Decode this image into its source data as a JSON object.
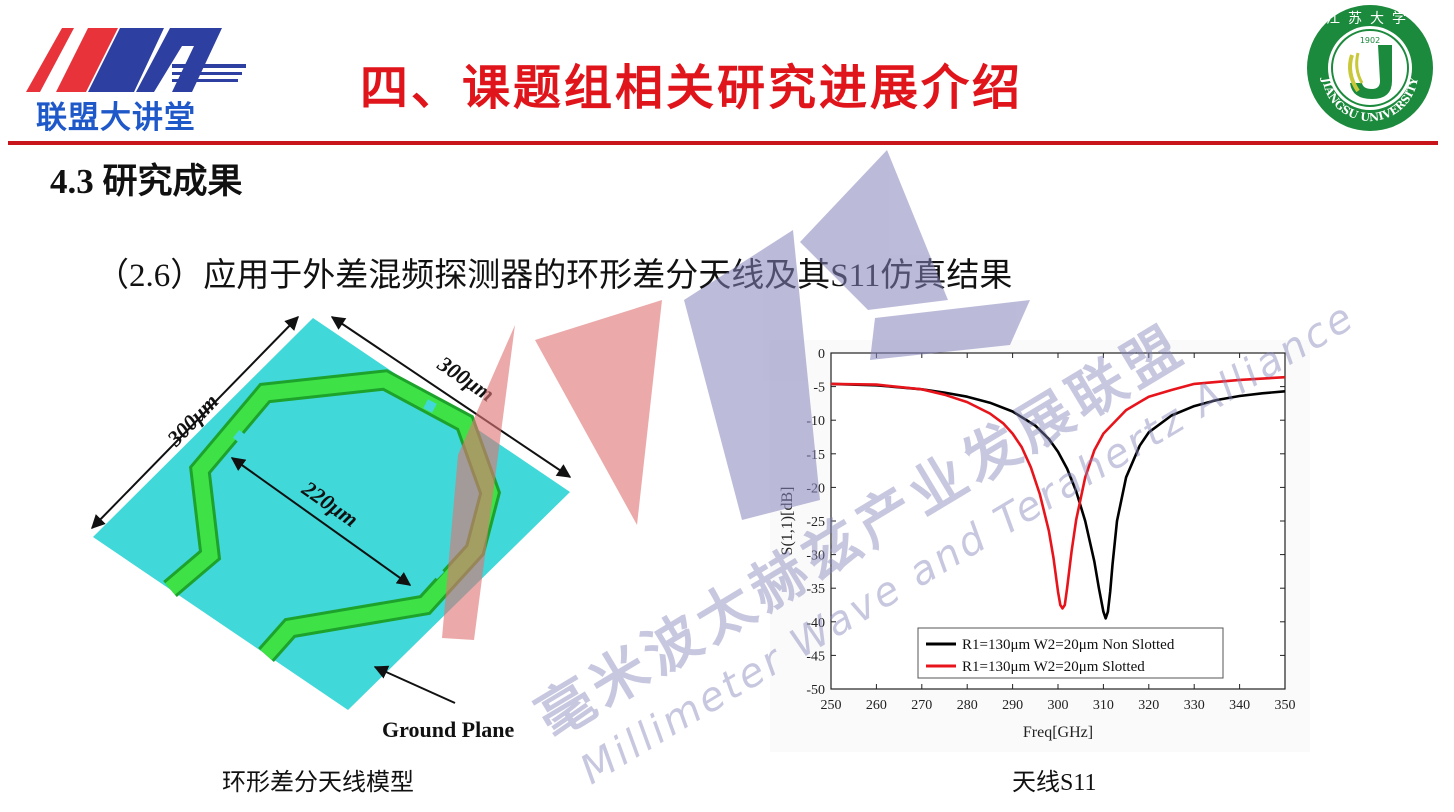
{
  "header": {
    "logo_left_text": "联盟大讲堂",
    "title": "四、课题组相关研究进展介绍",
    "logo_right_year": "1902",
    "logo_right_name_en": "JIANGSU UNIVERSITY",
    "logo_right_name_cn": "江苏大学"
  },
  "section": {
    "heading": "4.3  研究成果",
    "subtitle": "（2.6）应用于外差混频探测器的环形差分天线及其S11仿真结果"
  },
  "antenna_figure": {
    "dim_outer_left": "300μm",
    "dim_outer_right": "300μm",
    "dim_inner": "220μm",
    "ground_label": "Ground Plane",
    "caption": "环形差分天线模型",
    "colors": {
      "substrate": "#40d8d8",
      "ring": "#33d43a"
    }
  },
  "chart_caption": "天线S11",
  "watermark": {
    "cn_text": "毫米波太赫兹产业发展联盟",
    "en_text": "Millimeter Wave and Terahertz Alliance",
    "colors": {
      "red": "#e07575",
      "blue": "#8585bb"
    }
  },
  "chart_data": {
    "type": "line",
    "xlabel": "Freq[GHz]",
    "ylabel": "S(1,1)[dB]",
    "xlim": [
      250,
      350
    ],
    "ylim": [
      -50,
      0
    ],
    "xticks": [
      250,
      260,
      270,
      280,
      290,
      300,
      310,
      320,
      330,
      340,
      350
    ],
    "yticks": [
      0,
      -5,
      -10,
      -15,
      -20,
      -25,
      -30,
      -35,
      -40,
      -45,
      -50
    ],
    "legend_position": "bottom-right",
    "series": [
      {
        "name": "R1=130μm W2=20μm Non Slotted",
        "color": "#000000",
        "x": [
          250,
          260,
          270,
          275,
          280,
          285,
          290,
          295,
          298,
          300,
          302,
          304,
          306,
          308,
          309,
          310,
          310.5,
          311,
          311.5,
          312,
          313,
          315,
          318,
          320,
          325,
          330,
          335,
          340,
          345,
          350
        ],
        "y": [
          -4.6,
          -4.8,
          -5.4,
          -5.9,
          -6.5,
          -7.4,
          -8.7,
          -10.8,
          -12.8,
          -14.7,
          -17.2,
          -20.6,
          -25,
          -31,
          -35,
          -38.5,
          -39.5,
          -38.5,
          -35.5,
          -31.5,
          -25,
          -18.5,
          -13.8,
          -11.8,
          -9.3,
          -7.9,
          -7,
          -6.4,
          -6,
          -5.7
        ]
      },
      {
        "name": "R1=130μm W2=20μm Slotted",
        "color": "#e8141b",
        "x": [
          250,
          260,
          270,
          275,
          280,
          285,
          288,
          290,
          292,
          294,
          296,
          298,
          299,
          300,
          300.5,
          301,
          301.5,
          302,
          303,
          304,
          306,
          308,
          310,
          315,
          320,
          325,
          330,
          340,
          350
        ],
        "y": [
          -4.6,
          -4.7,
          -5.4,
          -6.2,
          -7.3,
          -9,
          -10.5,
          -12,
          -14,
          -17,
          -21,
          -26.5,
          -30.5,
          -35.5,
          -37.5,
          -38,
          -37.5,
          -35,
          -29.5,
          -24.8,
          -18.5,
          -14.5,
          -12,
          -8.5,
          -6.5,
          -5.5,
          -4.6,
          -4,
          -3.6
        ]
      }
    ]
  }
}
